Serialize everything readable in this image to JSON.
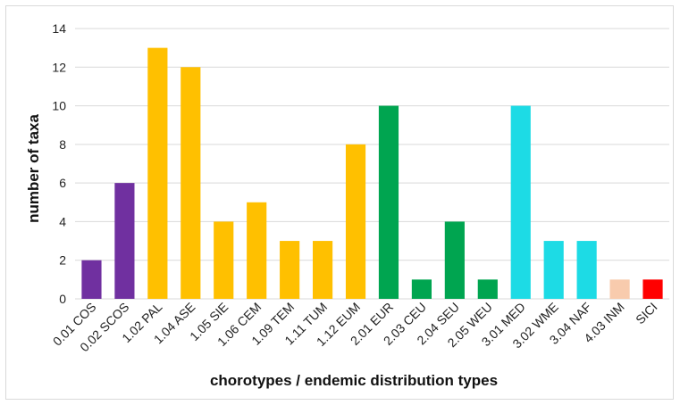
{
  "chart_data": {
    "type": "bar",
    "title": "",
    "xlabel": "chorotypes / endemic distribution types",
    "ylabel": "number of taxa",
    "ylim": [
      0,
      14
    ],
    "yticks": [
      0,
      2,
      4,
      6,
      8,
      10,
      12,
      14
    ],
    "grid": "horizontal",
    "categories": [
      "0.01 COS",
      "0.02 SCOS",
      "1.02 PAL",
      "1.04 ASE",
      "1.05 SIE",
      "1.06 CEM",
      "1.09 TEM",
      "1.11 TUM",
      "1.12 EUM",
      "2.01 EUR",
      "2.03 CEU",
      "2.04 SEU",
      "2.05 WEU",
      "3.01 MED",
      "3.02 WME",
      "3.04 NAF",
      "4.03 INM",
      "SICI"
    ],
    "values": [
      2,
      6,
      13,
      12,
      4,
      5,
      3,
      3,
      8,
      10,
      1,
      4,
      1,
      10,
      3,
      3,
      1,
      1
    ],
    "colors": [
      "#7030a0",
      "#7030a0",
      "#ffc000",
      "#ffc000",
      "#ffc000",
      "#ffc000",
      "#ffc000",
      "#ffc000",
      "#ffc000",
      "#00a550",
      "#00a550",
      "#00a550",
      "#00a550",
      "#1ddbe5",
      "#1ddbe5",
      "#1ddbe5",
      "#f8cbad",
      "#ff0000"
    ]
  }
}
